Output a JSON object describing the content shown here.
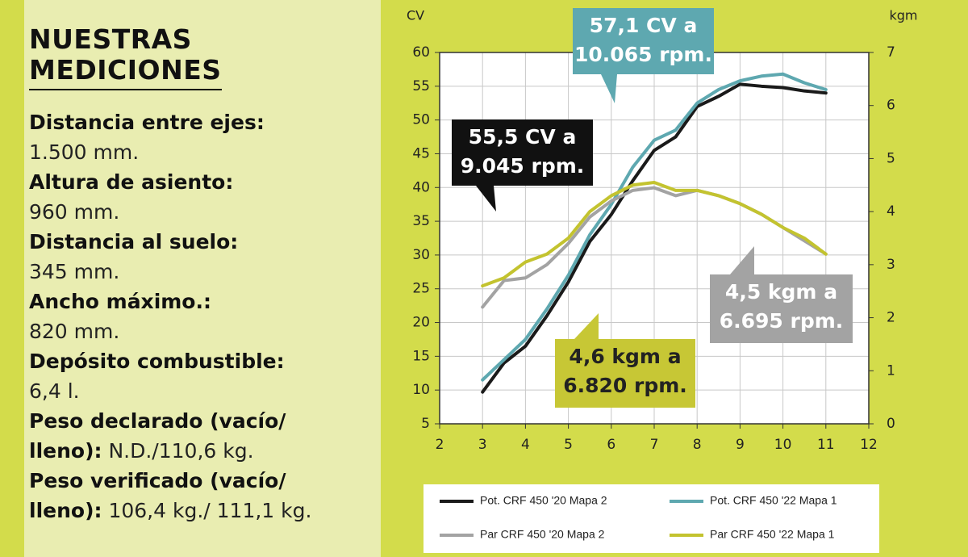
{
  "panel": {
    "title": [
      "NUESTRAS",
      "MEDICIONES"
    ],
    "specs": [
      {
        "label": "Distancia entre ejes:",
        "value": "1.500 mm."
      },
      {
        "label": "Altura de asiento:",
        "value": "960 mm."
      },
      {
        "label": "Distancia al suelo:",
        "value": "345 mm."
      },
      {
        "label": "Ancho máximo.:",
        "value": "820 mm."
      },
      {
        "label": "Depósito combustible:",
        "value": "6,4 l."
      },
      {
        "label": "Peso declarado (vacío/ lleno):",
        "value": "N.D./110,6 kg."
      },
      {
        "label": "Peso verificado (vacío/ lleno):",
        "value": "106,4 kg./ 111,1 kg."
      }
    ]
  },
  "chart_data": {
    "type": "line",
    "ylabel": "CV",
    "y2label": "kgm",
    "x": [
      3,
      3.5,
      4,
      4.5,
      5,
      5.5,
      6,
      6.5,
      7,
      7.5,
      8,
      8.5,
      9,
      9.5,
      10,
      10.5,
      11
    ],
    "series": [
      {
        "name": "Pot. CRF 450 '20 Mapa 2",
        "color": "#1a1a1a",
        "values": [
          9.7,
          14,
          16.5,
          21,
          26,
          32,
          36,
          41,
          45.5,
          47.5,
          52,
          53.5,
          55.3,
          55,
          54.8,
          54.3,
          54
        ]
      },
      {
        "name": "Pot. CRF 450 '22 Mapa 1",
        "color": "#5ea8b0",
        "values": [
          11.5,
          14.5,
          17.5,
          22,
          27,
          33,
          37.5,
          43,
          47,
          48.5,
          52.5,
          54.5,
          55.8,
          56.5,
          56.8,
          55.5,
          54.5
        ]
      },
      {
        "name": "Par CRF 450 '20 Mapa 2",
        "color": "#a3a3a3",
        "axis": "y2",
        "values": [
          2.2,
          2.7,
          2.75,
          3.0,
          3.4,
          3.9,
          4.2,
          4.4,
          4.45,
          4.3,
          4.4,
          4.3,
          4.15,
          3.95,
          3.7,
          3.45,
          3.2
        ]
      },
      {
        "name": "Par CRF 450 '22 Mapa 1",
        "color": "#c3c32f",
        "axis": "y2",
        "values": [
          2.6,
          2.75,
          3.05,
          3.2,
          3.5,
          4.0,
          4.3,
          4.5,
          4.55,
          4.4,
          4.4,
          4.3,
          4.15,
          3.95,
          3.7,
          3.5,
          3.2
        ]
      }
    ],
    "xlim": [
      2,
      12
    ],
    "xticks": [
      2,
      3,
      4,
      5,
      6,
      7,
      8,
      9,
      10,
      11,
      12
    ],
    "ylim": [
      5,
      60
    ],
    "yticks": [
      5,
      10,
      15,
      20,
      25,
      30,
      35,
      40,
      45,
      50,
      55,
      60
    ],
    "y2lim": [
      0,
      7
    ],
    "y2ticks": [
      0,
      1,
      2,
      3,
      4,
      5,
      6,
      7
    ],
    "annotations": [
      {
        "text": [
          "57,1 CV a",
          "10.065 rpm."
        ],
        "color": "#5ea8b0"
      },
      {
        "text": [
          "55,5 CV a",
          "9.045 rpm."
        ],
        "color": "#111111"
      },
      {
        "text": [
          "4,5 kgm a",
          "6.695 rpm."
        ],
        "color": "#a3a3a3"
      },
      {
        "text": [
          "4,6 kgm a",
          "6.820 rpm."
        ],
        "color": "#c7c735"
      }
    ]
  }
}
